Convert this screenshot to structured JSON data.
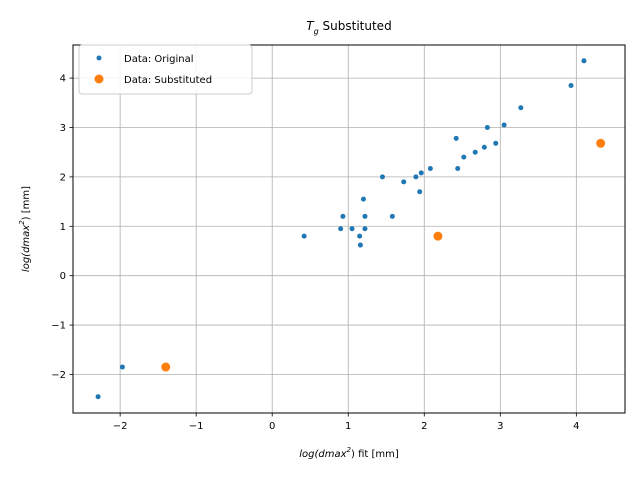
{
  "chart_data": {
    "type": "scatter",
    "title": {
      "base": "T",
      "sub": "g",
      "rest": " Substituted"
    },
    "xlabel": {
      "pre": "log(dmax",
      "sup": "2",
      "post": ") fit [mm]"
    },
    "ylabel": {
      "pre": "log(dmax",
      "sup": "2",
      "post": ") [mm]"
    },
    "xlim": [
      -2.62,
      4.64
    ],
    "ylim": [
      -2.78,
      4.67
    ],
    "xticks": [
      -2,
      -1,
      0,
      1,
      2,
      3,
      4
    ],
    "yticks": [
      -2,
      -1,
      0,
      1,
      2,
      3,
      4
    ],
    "grid": true,
    "legend_position": "top-left",
    "series": [
      {
        "name": "Data: Original",
        "color": "#1f77b4",
        "marker": "point",
        "points": [
          {
            "x": -2.29,
            "y": -2.45
          },
          {
            "x": -1.97,
            "y": -1.85
          },
          {
            "x": 0.42,
            "y": 0.8
          },
          {
            "x": 0.9,
            "y": 0.95
          },
          {
            "x": 0.93,
            "y": 1.2
          },
          {
            "x": 1.05,
            "y": 0.95
          },
          {
            "x": 1.15,
            "y": 0.8
          },
          {
            "x": 1.16,
            "y": 0.62
          },
          {
            "x": 1.2,
            "y": 1.55
          },
          {
            "x": 1.22,
            "y": 1.2
          },
          {
            "x": 1.22,
            "y": 0.95
          },
          {
            "x": 1.45,
            "y": 2.0
          },
          {
            "x": 1.58,
            "y": 1.2
          },
          {
            "x": 1.73,
            "y": 1.9
          },
          {
            "x": 1.89,
            "y": 2.0
          },
          {
            "x": 1.94,
            "y": 1.7
          },
          {
            "x": 1.96,
            "y": 2.08
          },
          {
            "x": 2.08,
            "y": 2.17
          },
          {
            "x": 2.42,
            "y": 2.78
          },
          {
            "x": 2.44,
            "y": 2.17
          },
          {
            "x": 2.52,
            "y": 2.4
          },
          {
            "x": 2.67,
            "y": 2.5
          },
          {
            "x": 2.79,
            "y": 2.6
          },
          {
            "x": 2.83,
            "y": 3.0
          },
          {
            "x": 2.94,
            "y": 2.68
          },
          {
            "x": 3.05,
            "y": 3.05
          },
          {
            "x": 3.27,
            "y": 3.4
          },
          {
            "x": 3.93,
            "y": 3.85
          },
          {
            "x": 4.1,
            "y": 4.35
          }
        ]
      },
      {
        "name": "Data: Substituted",
        "color": "#ff7f0e",
        "marker": "circle",
        "points": [
          {
            "x": -1.4,
            "y": -1.85
          },
          {
            "x": 2.18,
            "y": 0.8
          },
          {
            "x": 4.32,
            "y": 2.68
          }
        ]
      }
    ]
  }
}
